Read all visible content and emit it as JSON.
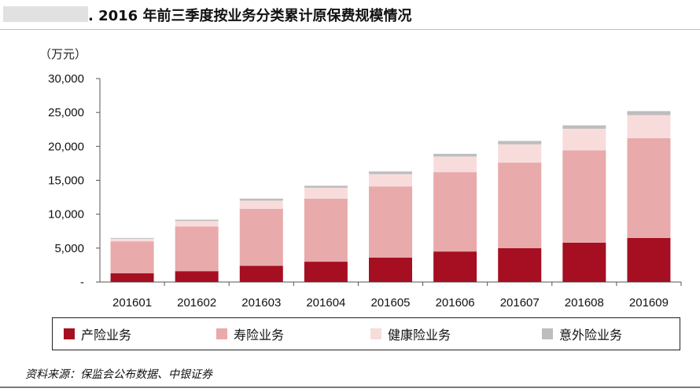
{
  "header": {
    "title": ". 2016 年前三季度按业务分类累计原保费规模情况"
  },
  "chart_data": {
    "type": "bar",
    "stacked": true,
    "unit_label": "（万元）",
    "categories": [
      "201601",
      "201602",
      "201603",
      "201604",
      "201605",
      "201606",
      "201607",
      "201608",
      "201609"
    ],
    "y_ticks": [
      "30,000",
      "25,000",
      "20,000",
      "15,000",
      "10,000",
      "5,000",
      "-"
    ],
    "ylim": [
      0,
      30000
    ],
    "series": [
      {
        "name": "产险业务",
        "color": "#a50f21",
        "values": [
          1300,
          1600,
          2400,
          3000,
          3600,
          4500,
          5000,
          5800,
          6500
        ]
      },
      {
        "name": "寿险业务",
        "color": "#e8aaaa",
        "values": [
          4700,
          6600,
          8400,
          9300,
          10500,
          11700,
          12600,
          13600,
          14700
        ]
      },
      {
        "name": "健康险业务",
        "color": "#f8dcdc",
        "values": [
          400,
          800,
          1200,
          1600,
          1800,
          2300,
          2700,
          3200,
          3400
        ]
      },
      {
        "name": "意外险业务",
        "color": "#bdbdbd",
        "values": [
          100,
          200,
          300,
          300,
          400,
          400,
          500,
          500,
          600
        ]
      }
    ]
  },
  "footer": {
    "source": "资料来源：保监会公布数据、中银证券"
  }
}
